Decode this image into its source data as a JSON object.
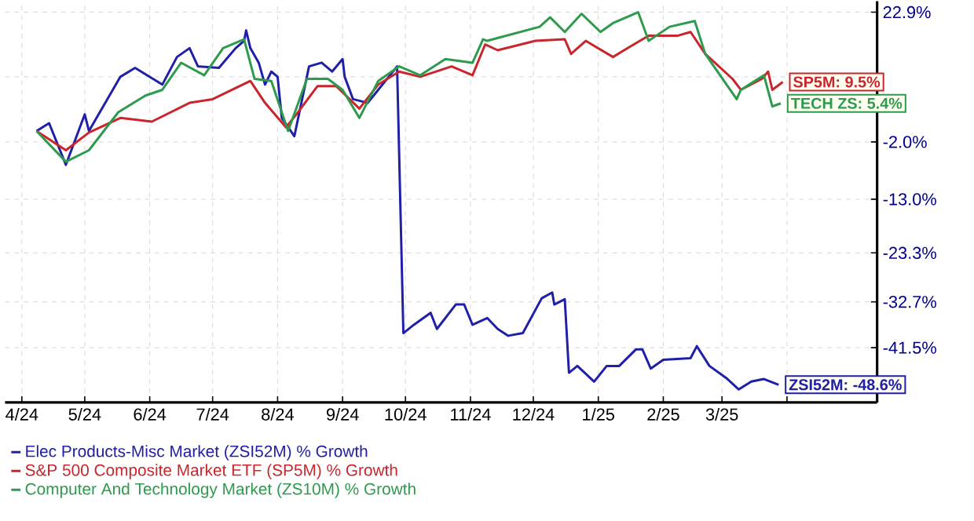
{
  "chart_data": {
    "type": "line",
    "xlim": [
      "2024-03-24",
      "2025-05-14"
    ],
    "xticks": [
      {
        "value": "2024-04-01",
        "label": "4/24"
      },
      {
        "value": "2024-05-01",
        "label": "5/24"
      },
      {
        "value": "2024-06-01",
        "label": "6/24"
      },
      {
        "value": "2024-07-01",
        "label": "7/24"
      },
      {
        "value": "2024-08-01",
        "label": "8/24"
      },
      {
        "value": "2024-09-01",
        "label": "9/24"
      },
      {
        "value": "2024-10-01",
        "label": "10/24"
      },
      {
        "value": "2024-11-01",
        "label": "11/24"
      },
      {
        "value": "2024-12-01",
        "label": "12/24"
      },
      {
        "value": "2025-01-01",
        "label": "1/25"
      },
      {
        "value": "2025-02-01",
        "label": "2/25"
      },
      {
        "value": "2025-03-01",
        "label": "3/25"
      },
      {
        "value": "2025-04-01",
        "label": null
      }
    ],
    "ylim": [
      -52,
      25
    ],
    "yticks": [
      {
        "value": 22.9,
        "label": "22.9%"
      },
      {
        "value": 10.5,
        "label": null
      },
      {
        "value": -2.0,
        "label": "-2.0%"
      },
      {
        "value": -13.0,
        "label": "-13.0%"
      },
      {
        "value": -23.3,
        "label": "-23.3%"
      },
      {
        "value": -32.7,
        "label": "-32.7%"
      },
      {
        "value": -41.5,
        "label": "-41.5%"
      }
    ],
    "grid": true,
    "legend": "bottom",
    "series": [
      {
        "name": "Elec Products-Misc Market (ZSI52M) % Growth",
        "color": "#1f1fa8",
        "x": [
          "2024-04-08",
          "2024-04-14",
          "2024-04-22",
          "2024-05-01",
          "2024-05-03",
          "2024-05-18",
          "2024-05-25",
          "2024-06-07",
          "2024-06-14",
          "2024-06-20",
          "2024-06-24",
          "2024-07-04",
          "2024-07-12",
          "2024-07-16",
          "2024-07-17",
          "2024-07-19",
          "2024-07-23",
          "2024-07-26",
          "2024-07-29",
          "2024-08-01",
          "2024-08-03",
          "2024-08-09",
          "2024-08-16",
          "2024-08-22",
          "2024-08-27",
          "2024-09-01",
          "2024-09-02",
          "2024-09-06",
          "2024-09-13",
          "2024-09-18",
          "2024-09-27",
          "2024-09-30",
          "2024-10-05",
          "2024-10-13",
          "2024-10-16",
          "2024-10-25",
          "2024-10-29",
          "2024-11-02",
          "2024-11-09",
          "2024-11-14",
          "2024-11-19",
          "2024-11-26",
          "2024-12-05",
          "2024-12-10",
          "2024-12-11",
          "2024-12-16",
          "2024-12-18",
          "2024-12-22",
          "2024-12-30",
          "2025-01-05",
          "2025-01-11",
          "2025-01-19",
          "2025-01-22",
          "2025-01-26",
          "2025-02-01",
          "2025-02-14",
          "2025-02-17",
          "2025-02-23",
          "2025-03-03",
          "2025-03-09",
          "2025-03-15",
          "2025-03-21",
          "2025-03-28"
        ],
        "values": [
          0.1,
          1.6,
          -6.4,
          3.3,
          0.1,
          10.5,
          12.2,
          9.0,
          14.3,
          16.0,
          12.5,
          12.2,
          16.0,
          17.4,
          19.4,
          16.0,
          13.2,
          9.0,
          11.5,
          10.5,
          2.6,
          -0.9,
          12.5,
          13.2,
          11.5,
          13.9,
          10.5,
          6.2,
          5.5,
          8.0,
          12.5,
          -38.7,
          -37.1,
          -34.8,
          -37.9,
          -33.2,
          -33.2,
          -37.1,
          -35.8,
          -37.9,
          -39.2,
          -38.7,
          -32.0,
          -30.9,
          -33.2,
          -32.2,
          -46.3,
          -45.0,
          -48.0,
          -45.0,
          -45.0,
          -41.8,
          -41.8,
          -45.5,
          -43.8,
          -43.5,
          -41.2,
          -45.0,
          -47.3,
          -49.5,
          -48.0,
          -47.5,
          -48.6
        ]
      },
      {
        "name": "S&P 500 Composite Market ETF (SP5M) % Growth",
        "color": "#c8262c",
        "x": [
          "2024-04-08",
          "2024-04-22",
          "2024-05-03",
          "2024-05-18",
          "2024-06-02",
          "2024-06-20",
          "2024-07-01",
          "2024-07-19",
          "2024-07-26",
          "2024-08-05",
          "2024-08-10",
          "2024-08-20",
          "2024-08-29",
          "2024-09-09",
          "2024-09-18",
          "2024-09-28",
          "2024-10-08",
          "2024-10-23",
          "2024-11-02",
          "2024-11-08",
          "2024-11-14",
          "2024-12-02",
          "2024-12-16",
          "2024-12-19",
          "2024-12-26",
          "2025-01-08",
          "2025-01-15",
          "2025-01-25",
          "2025-02-08",
          "2025-02-14",
          "2025-02-21",
          "2025-03-06",
          "2025-03-10",
          "2025-03-20",
          "2025-03-23",
          "2025-03-25",
          "2025-03-30"
        ],
        "values": [
          0.1,
          -3.6,
          -0.2,
          2.6,
          1.9,
          5.5,
          6.2,
          9.7,
          5.5,
          0.8,
          3.3,
          8.7,
          8.7,
          4.4,
          9.0,
          11.5,
          10.5,
          12.5,
          10.8,
          16.7,
          15.6,
          17.4,
          17.7,
          14.9,
          17.4,
          14.3,
          16.0,
          18.4,
          18.4,
          19.1,
          14.9,
          10.1,
          8.0,
          10.1,
          11.5,
          8.0,
          9.5
        ]
      },
      {
        "name": "Computer And Technology Market (ZS10M) % Growth",
        "color": "#2e9a4e",
        "x": [
          "2024-04-08",
          "2024-04-22",
          "2024-05-03",
          "2024-05-17",
          "2024-05-30",
          "2024-06-07",
          "2024-06-16",
          "2024-06-27",
          "2024-07-06",
          "2024-07-16",
          "2024-07-21",
          "2024-07-29",
          "2024-08-06",
          "2024-08-15",
          "2024-08-25",
          "2024-09-01",
          "2024-09-09",
          "2024-09-18",
          "2024-09-28",
          "2024-10-08",
          "2024-10-20",
          "2024-11-02",
          "2024-11-07",
          "2024-11-09",
          "2024-12-04",
          "2024-12-09",
          "2024-12-16",
          "2024-12-24",
          "2025-01-02",
          "2025-01-08",
          "2025-01-20",
          "2025-01-25",
          "2025-02-04",
          "2025-02-16",
          "2025-02-21",
          "2025-03-08",
          "2025-03-10",
          "2025-03-21",
          "2025-03-25",
          "2025-03-29"
        ],
        "values": [
          0.1,
          -5.8,
          -3.6,
          3.7,
          6.9,
          8.0,
          13.2,
          10.8,
          16.0,
          17.7,
          10.1,
          9.7,
          0.1,
          10.1,
          10.1,
          8.0,
          2.6,
          9.7,
          12.5,
          10.8,
          13.9,
          13.2,
          17.7,
          17.4,
          20.1,
          21.9,
          19.1,
          22.6,
          19.1,
          20.8,
          22.9,
          17.4,
          20.1,
          21.2,
          14.9,
          6.2,
          8.0,
          10.8,
          4.8,
          5.4
        ]
      }
    ],
    "annotations": [
      {
        "text": "SP5M: 9.5%",
        "x": "2025-03-30",
        "y": 9.5
      },
      {
        "text": "TECH ZS: 5.4%",
        "x": "2025-03-29",
        "y": 5.4
      },
      {
        "text": "ZSI52M: -48.6%",
        "x": "2025-03-28",
        "y": -48.6
      }
    ]
  }
}
